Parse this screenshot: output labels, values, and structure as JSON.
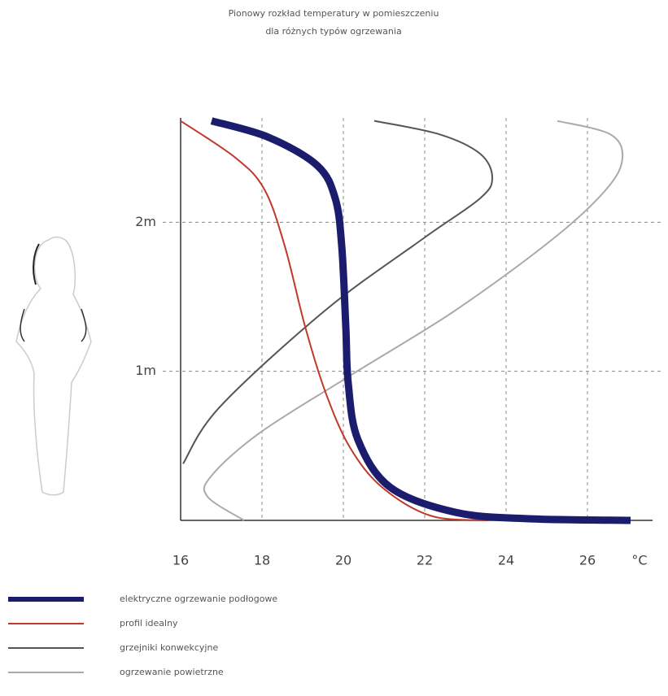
{
  "chart_data": {
    "type": "line",
    "title": "Pionowy rozkład temperatury w pomieszczeniu",
    "subtitle": "dla różnych typów ogrzewania",
    "xlabel": "°C",
    "xlim": [
      16,
      27.6
    ],
    "xticks": [
      16,
      18,
      20,
      22,
      24,
      26
    ],
    "ylim": [
      0,
      2.7
    ],
    "yticks": [
      {
        "value": 1,
        "label": "1m"
      },
      {
        "value": 2,
        "label": "2m"
      }
    ],
    "grid": true,
    "series": [
      {
        "name": "elektryczne ogrzewanie podłogowe",
        "color": "#1c1c6e",
        "width": 9,
        "x": [
          16.76,
          18.16,
          19.36,
          19.8,
          19.96,
          20.06,
          20.12,
          20.36,
          21.16,
          22.76,
          24.56,
          27.06
        ],
        "values": [
          2.68,
          2.57,
          2.38,
          2.16,
          1.84,
          1.3,
          0.92,
          0.54,
          0.22,
          0.054,
          0.011,
          0
        ]
      },
      {
        "name": "profil idealny",
        "color": "#c0392b",
        "width": 2,
        "x": [
          16,
          17.36,
          18.06,
          18.56,
          19.06,
          19.56,
          20.16,
          20.96,
          22.16,
          23.56
        ],
        "values": [
          2.68,
          2.43,
          2.22,
          1.84,
          1.3,
          0.86,
          0.49,
          0.22,
          0.03,
          0
        ]
      },
      {
        "name": "grzejniki konwekcyjne",
        "color": "#555555",
        "width": 2,
        "x": [
          16.06,
          16.96,
          19.56,
          21.96,
          23.36,
          23.66,
          23.36,
          22.36,
          20.76
        ],
        "values": [
          0.38,
          0.76,
          1.41,
          1.89,
          2.16,
          2.3,
          2.46,
          2.59,
          2.68
        ]
      },
      {
        "name": "ogrzewanie powietrzne",
        "color": "#aaaaaa",
        "width": 2,
        "x": [
          17.56,
          16.66,
          16.76,
          17.96,
          20.16,
          22.76,
          25.16,
          26.46,
          26.86,
          26.56,
          25.26
        ],
        "values": [
          0,
          0.16,
          0.3,
          0.59,
          0.97,
          1.41,
          1.89,
          2.22,
          2.43,
          2.59,
          2.68
        ]
      }
    ]
  }
}
